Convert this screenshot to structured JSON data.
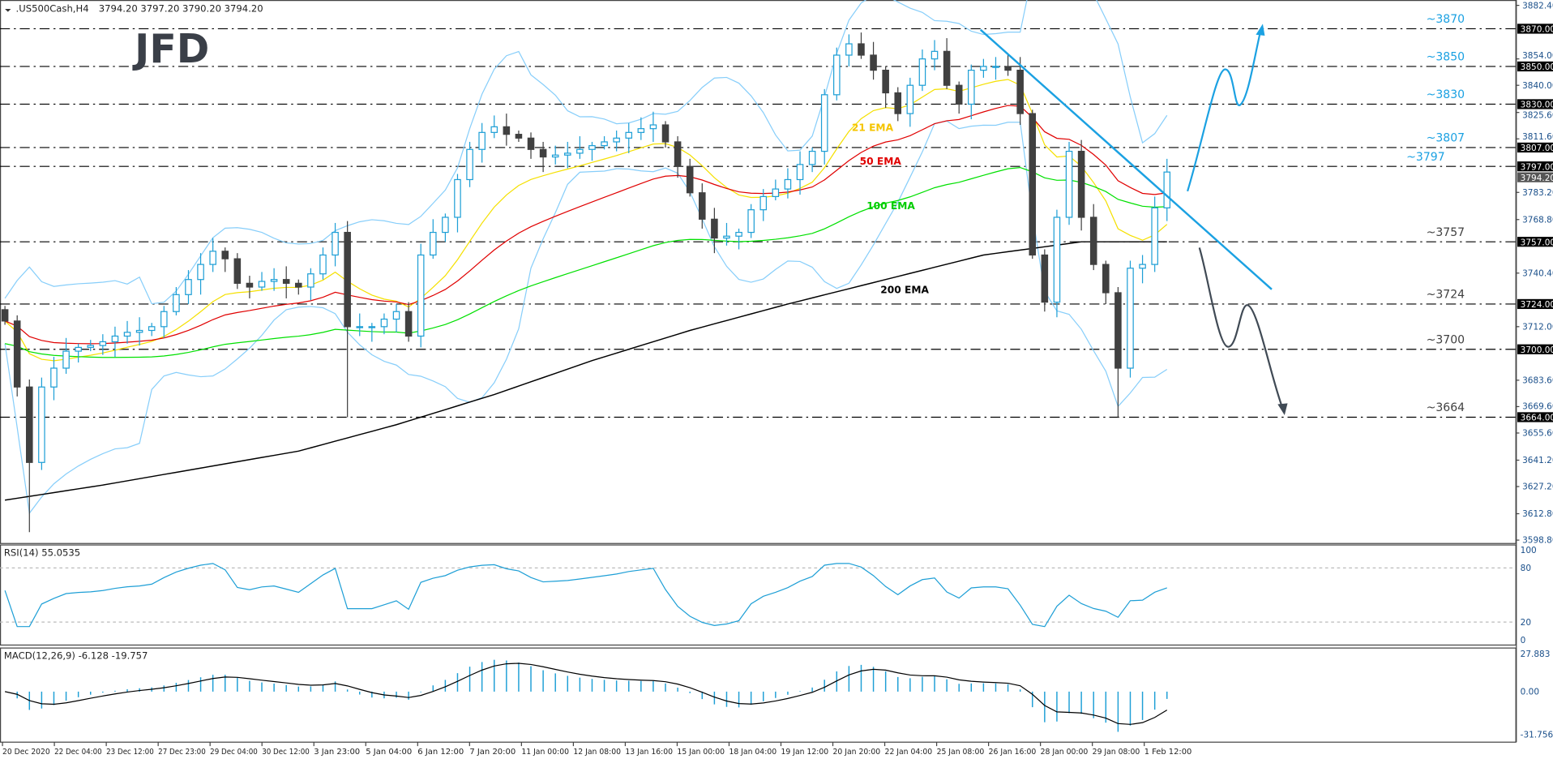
{
  "header": {
    "symbol": ".US500Cash,H4",
    "ohlc": "3794.20 3797.20 3790.20 3794.20"
  },
  "logo": "JFD",
  "rsi": {
    "label": "RSI(14) 55.0535",
    "ticks": [
      "100",
      "80",
      "20",
      "0"
    ]
  },
  "macd": {
    "label": "MACD(12,26,9) -6.128 -19.757",
    "ticks": [
      "27.883",
      "0.00",
      "-31.756"
    ]
  },
  "colors": {
    "bull": "#1e9fd6",
    "bear": "#404040",
    "ema21": "#f5e000",
    "ema50": "#e00000",
    "ema100": "#00e000",
    "ema200": "#000000",
    "bands": "#87cefa",
    "upper_levels": "#1ba1e2",
    "lower_levels": "#404040"
  },
  "chart_data": {
    "type": "candlestick",
    "ylim": [
      3598.8,
      3882.4
    ],
    "y_ticks": [
      "3882.40",
      "3854.00",
      "3840.00",
      "3825.60",
      "3811.60",
      "3783.20",
      "3768.80",
      "3740.40",
      "3712.00",
      "3683.60",
      "3669.60",
      "3655.60",
      "3641.20",
      "3627.20",
      "3612.80",
      "3598.80"
    ],
    "current_price": "3794.20",
    "x_ticks": [
      "20 Dec 2020",
      "22 Dec 04:00",
      "23 Dec 12:00",
      "27 Dec 23:00",
      "29 Dec 04:00",
      "30 Dec 12:00",
      "3 Jan 23:00",
      "5 Jan 04:00",
      "6 Jan 12:00",
      "7 Jan 20:00",
      "11 Jan 00:00",
      "12 Jan 08:00",
      "13 Jan 16:00",
      "15 Jan 00:00",
      "18 Jan 04:00",
      "19 Jan 12:00",
      "20 Jan 20:00",
      "22 Jan 04:00",
      "25 Jan 08:00",
      "26 Jan 16:00",
      "28 Jan 00:00",
      "29 Jan 08:00",
      "1 Feb 12:00"
    ],
    "closes": [
      3715,
      3680,
      3640,
      3680,
      3690,
      3699,
      3701,
      3702,
      3704,
      3707,
      3709,
      3710,
      3712,
      3720,
      3729,
      3737,
      3745,
      3752,
      3748,
      3735,
      3733,
      3736,
      3737,
      3735,
      3733,
      3740,
      3750,
      3762,
      3712,
      3712,
      3712,
      3716,
      3720,
      3707,
      3750,
      3762,
      3770,
      3790,
      3806,
      3815,
      3818,
      3814,
      3812,
      3806,
      3802,
      3803,
      3804,
      3806,
      3808,
      3810,
      3812,
      3815,
      3817,
      3819,
      3810,
      3797,
      3783,
      3769,
      3759,
      3760,
      3762,
      3774,
      3781,
      3785,
      3790,
      3798,
      3805,
      3835,
      3856,
      3862,
      3856,
      3848,
      3836,
      3825,
      3840,
      3854,
      3858,
      3840,
      3830,
      3848,
      3850,
      3850,
      3848,
      3825,
      3750,
      3725,
      3770,
      3805,
      3770,
      3745,
      3730,
      3690,
      3743,
      3745,
      3775,
      3794
    ],
    "ema200_samples": [
      3620,
      3628,
      3637,
      3646,
      3660,
      3676,
      3694,
      3710,
      3724,
      3737,
      3750,
      3757,
      3757
    ],
    "indicator_labels": [
      {
        "text": "21 EMA",
        "series": "ema21"
      },
      {
        "text": "50 EMA",
        "series": "ema50"
      },
      {
        "text": "100 EMA",
        "series": "ema100"
      },
      {
        "text": "200 EMA",
        "series": "ema200"
      }
    ],
    "levels": [
      {
        "price": 3870,
        "box": "3870.00",
        "label": "~3870",
        "side": "upper"
      },
      {
        "price": 3850,
        "box": "3850.00",
        "label": "~3850",
        "side": "upper"
      },
      {
        "price": 3830,
        "box": "3830.00",
        "label": "~3830",
        "side": "upper"
      },
      {
        "price": 3807,
        "box": "3807.00",
        "label": "~3807",
        "side": "upper"
      },
      {
        "price": 3797,
        "box": "3797.00",
        "label": "~3797",
        "side": "upper"
      },
      {
        "price": 3757,
        "box": "3757.00",
        "label": "~3757",
        "side": "lower"
      },
      {
        "price": 3724,
        "box": "3724.00",
        "label": "~3724",
        "side": "lower"
      },
      {
        "price": 3700,
        "box": "3700.00",
        "label": "~3700",
        "side": "lower"
      },
      {
        "price": 3664,
        "box": "3664.00",
        "label": "~3664",
        "side": "lower"
      }
    ]
  }
}
